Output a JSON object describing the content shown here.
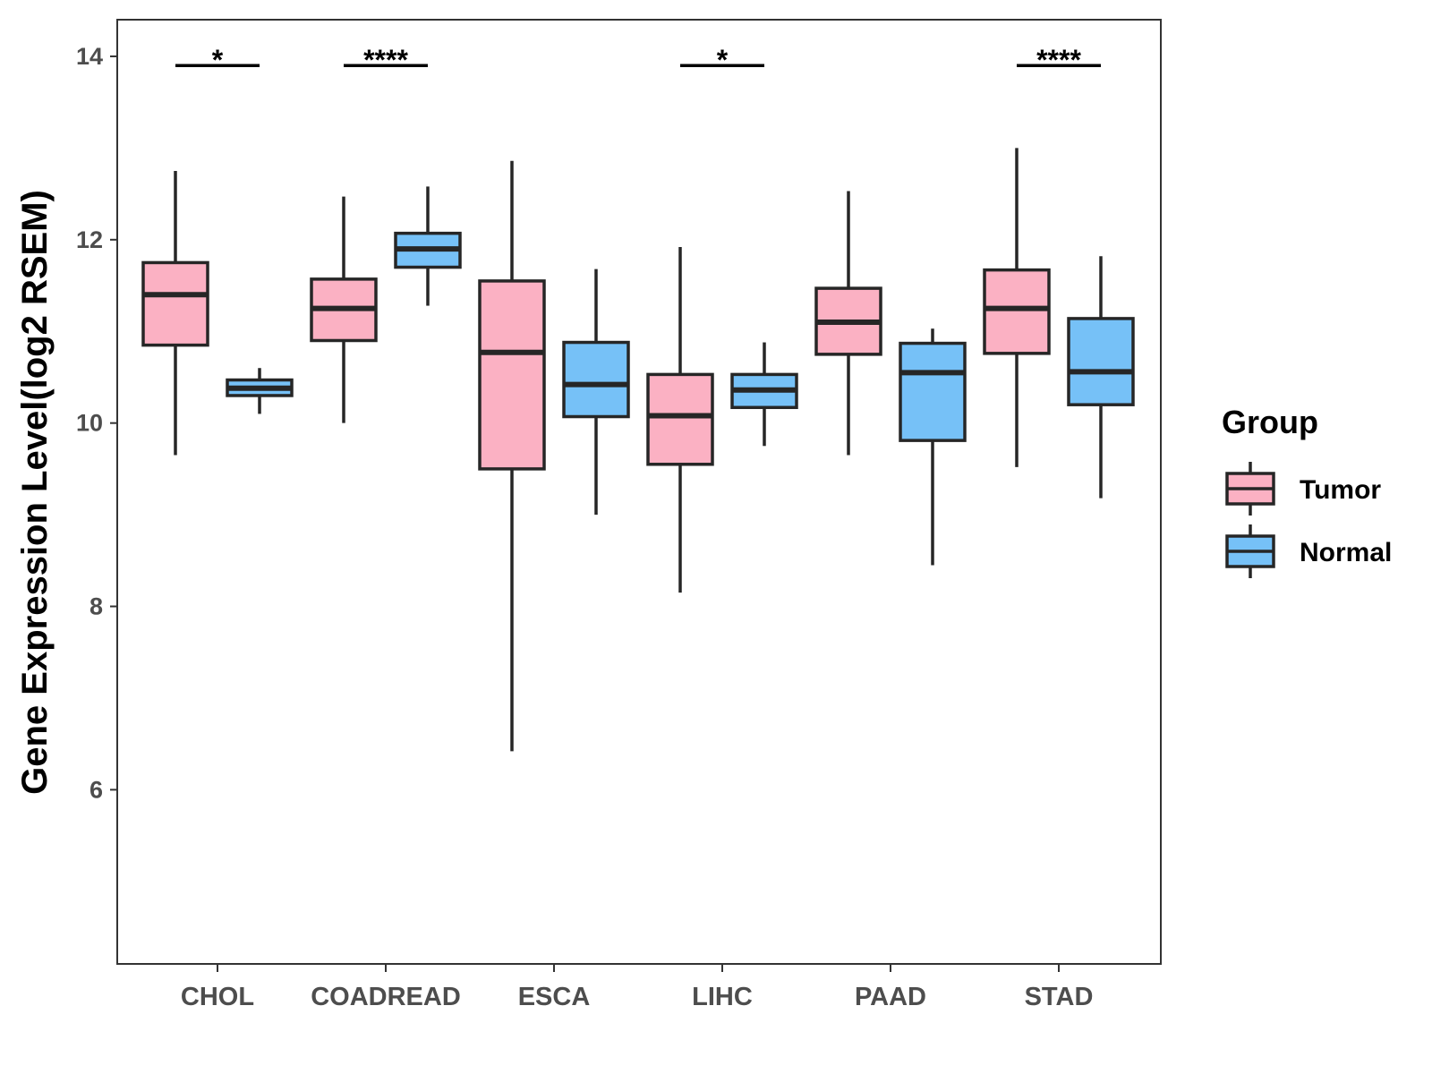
{
  "chart_data": {
    "type": "boxplot",
    "ylabel": "Gene Expression Level(log2 RSEM)",
    "xlabel": "",
    "ylim": [
      4.1,
      14.4
    ],
    "yticks": [
      6,
      8,
      10,
      12,
      14
    ],
    "categories": [
      "CHOL",
      "COADREAD",
      "ESCA",
      "LIHC",
      "PAAD",
      "STAD"
    ],
    "legend": {
      "title": "Group",
      "position": "right",
      "items": [
        {
          "name": "Tumor",
          "color": "#FBB1C3"
        },
        {
          "name": "Normal",
          "color": "#76C1F7"
        }
      ]
    },
    "series": [
      {
        "name": "Tumor",
        "color": "#FBB1C3",
        "boxes": [
          {
            "min": 9.65,
            "q1": 10.85,
            "median": 11.4,
            "q3": 11.75,
            "max": 12.75
          },
          {
            "min": 10.0,
            "q1": 10.9,
            "median": 11.25,
            "q3": 11.57,
            "max": 12.47
          },
          {
            "min": 6.42,
            "q1": 9.5,
            "median": 10.77,
            "q3": 11.55,
            "max": 12.86
          },
          {
            "min": 8.15,
            "q1": 9.55,
            "median": 10.08,
            "q3": 10.53,
            "max": 11.92
          },
          {
            "min": 9.65,
            "q1": 10.75,
            "median": 11.1,
            "q3": 11.47,
            "max": 12.53
          },
          {
            "min": 9.52,
            "q1": 10.76,
            "median": 11.25,
            "q3": 11.67,
            "max": 13.0
          }
        ]
      },
      {
        "name": "Normal",
        "color": "#76C1F7",
        "boxes": [
          {
            "min": 10.1,
            "q1": 10.3,
            "median": 10.38,
            "q3": 10.47,
            "max": 10.6
          },
          {
            "min": 11.28,
            "q1": 11.7,
            "median": 11.9,
            "q3": 12.07,
            "max": 12.58
          },
          {
            "min": 9.0,
            "q1": 10.07,
            "median": 10.42,
            "q3": 10.88,
            "max": 11.68
          },
          {
            "min": 9.75,
            "q1": 10.17,
            "median": 10.36,
            "q3": 10.53,
            "max": 10.88
          },
          {
            "min": 8.45,
            "q1": 9.81,
            "median": 10.55,
            "q3": 10.87,
            "max": 11.03
          },
          {
            "min": 9.18,
            "q1": 10.2,
            "median": 10.56,
            "q3": 11.14,
            "max": 11.82
          }
        ]
      }
    ],
    "significance": [
      {
        "category": "CHOL",
        "label": "*"
      },
      {
        "category": "COADREAD",
        "label": "****"
      },
      {
        "category": "LIHC",
        "label": "*"
      },
      {
        "category": "STAD",
        "label": "****"
      }
    ],
    "significance_y": 13.9
  }
}
